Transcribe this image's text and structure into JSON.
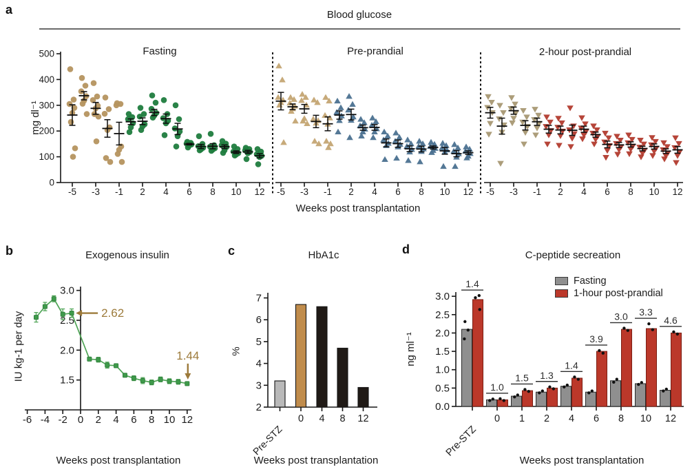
{
  "figure": {
    "panel_a": {
      "letter": "a",
      "header": "Blood glucose",
      "titles": [
        "Fasting",
        "Pre-prandial",
        "2-hour post-prandial"
      ],
      "y_axis_label": "mg dl⁻¹",
      "x_axis_label": "Weeks post transplantation"
    },
    "panel_b": {
      "letter": "b",
      "title": "Exogenous insulin",
      "y_axis_label": "IU kg-1 per day",
      "x_axis_label": "Weeks post transplantation"
    },
    "panel_c": {
      "letter": "c",
      "title": "HbA1c",
      "y_axis_label": "%",
      "x_axis_label": "Weeks post transplantation"
    },
    "panel_d": {
      "letter": "d",
      "title": "C-peptide secreation",
      "y_axis_label": "ng ml⁻¹",
      "x_axis_label": "Weeks post transplantation",
      "legend": [
        {
          "label": "Fasting",
          "color": "#8f8f8f"
        },
        {
          "label": "1-hour post-prandial",
          "color": "#bb382a"
        }
      ]
    }
  },
  "chart_data": [
    {
      "id": "a-fasting",
      "type": "scatter",
      "marker": "circle",
      "title": "Fasting",
      "ylabel": "mg dl⁻¹",
      "ylim": [
        0,
        500
      ],
      "y_ticks": [
        0,
        100,
        200,
        300,
        400,
        500
      ],
      "x_tick_labels": [
        "-5",
        "-3",
        "-1",
        "2",
        "4",
        "6",
        "8",
        "10",
        "12"
      ],
      "pre_color": "#b5945f",
      "post_color": "#1f7c3e",
      "groups": [
        {
          "week": -5,
          "points": [
            440,
            322,
            305,
            290,
            270,
            235,
            133,
            100
          ],
          "mean": 262,
          "sem": 40
        },
        {
          "week": -4,
          "points": [
            406,
            376,
            354,
            335,
            318,
            306,
            266
          ],
          "mean": 337,
          "sem": 16
        },
        {
          "week": -3,
          "points": [
            386,
            334,
            320,
            298,
            288,
            266,
            256,
            160
          ],
          "mean": 288,
          "sem": 23
        },
        {
          "week": -2,
          "points": [
            330,
            285,
            267,
            214,
            204,
            95,
            80
          ],
          "mean": 210,
          "sem": 34
        },
        {
          "week": -1,
          "points": [
            308,
            305,
            300,
            140,
            127,
            111,
            80
          ],
          "mean": 190,
          "sem": 44
        },
        {
          "week": 1,
          "points": [
            266,
            254,
            246,
            230,
            214,
            196
          ],
          "mean": 236,
          "sem": 11
        },
        {
          "week": 2,
          "points": [
            290,
            266,
            256,
            226,
            218,
            204
          ],
          "mean": 238,
          "sem": 13
        },
        {
          "week": 3,
          "points": [
            338,
            310,
            286,
            270,
            260,
            252
          ],
          "mean": 272,
          "sem": 12
        },
        {
          "week": 4,
          "points": [
            320,
            266,
            250,
            240,
            230,
            184
          ],
          "mean": 248,
          "sem": 18
        },
        {
          "week": 5,
          "points": [
            300,
            246,
            210,
            198,
            180,
            140
          ],
          "mean": 208,
          "sem": 22
        },
        {
          "week": 6,
          "points": [
            158,
            154,
            151,
            148,
            144,
            136
          ],
          "mean": 149,
          "sem": 3
        },
        {
          "week": 7,
          "points": [
            180,
            150,
            141,
            135,
            129,
            125
          ],
          "mean": 140,
          "sem": 8
        },
        {
          "week": 8,
          "points": [
            189,
            145,
            139,
            133,
            128,
            123
          ],
          "mean": 141,
          "sem": 10
        },
        {
          "week": 9,
          "points": [
            161,
            151,
            145,
            138,
            125,
            115
          ],
          "mean": 139,
          "sem": 7
        },
        {
          "week": 10,
          "points": [
            140,
            130,
            120,
            114,
            109,
            105
          ],
          "mean": 118,
          "sem": 5
        },
        {
          "week": 11,
          "points": [
            135,
            130,
            125,
            119,
            114,
            91
          ],
          "mean": 119,
          "sem": 6
        },
        {
          "week": 12,
          "points": [
            130,
            120,
            110,
            104,
            99,
            71
          ],
          "mean": 104,
          "sem": 8
        }
      ]
    },
    {
      "id": "a-pre-prandial",
      "type": "scatter",
      "marker": "triangle-up",
      "title": "Pre-prandial",
      "ylabel": "mg dl⁻¹",
      "ylim": [
        0,
        500
      ],
      "y_ticks": [
        0,
        100,
        200,
        300,
        400,
        500
      ],
      "x_tick_labels": [
        "-5",
        "-3",
        "-1",
        "2",
        "4",
        "6",
        "8",
        "10",
        "12"
      ],
      "pre_color": "#c4a573",
      "post_color": "#4b7190",
      "groups": [
        {
          "week": -5,
          "points": [
            452,
            398,
            330,
            320,
            310,
            300,
            155
          ],
          "mean": 316,
          "sem": 34
        },
        {
          "week": -4,
          "points": [
            330,
            322,
            308,
            296,
            286,
            276,
            238
          ],
          "mean": 294,
          "sem": 11
        },
        {
          "week": -3,
          "points": [
            342,
            330,
            318,
            300,
            248,
            238,
            228
          ],
          "mean": 286,
          "sem": 17
        },
        {
          "week": -2,
          "points": [
            320,
            310,
            246,
            240,
            230,
            160,
            150
          ],
          "mean": 237,
          "sem": 24
        },
        {
          "week": -1,
          "points": [
            330,
            316,
            260,
            250,
            226,
            160,
            150,
            135
          ],
          "mean": 228,
          "sem": 27
        },
        {
          "week": 1,
          "points": [
            316,
            290,
            272,
            258,
            240,
            196
          ],
          "mean": 262,
          "sem": 16
        },
        {
          "week": 2,
          "points": [
            334,
            303,
            281,
            254,
            241,
            174
          ],
          "mean": 264,
          "sem": 21
        },
        {
          "week": 3,
          "points": [
            245,
            232,
            220,
            207,
            196,
            180
          ],
          "mean": 213,
          "sem": 10
        },
        {
          "week": 4,
          "points": [
            250,
            236,
            222,
            208,
            196,
            174
          ],
          "mean": 214,
          "sem": 11
        },
        {
          "week": 5,
          "points": [
            196,
            180,
            165,
            152,
            143,
            89
          ],
          "mean": 154,
          "sem": 15
        },
        {
          "week": 6,
          "points": [
            192,
            175,
            160,
            148,
            138,
            94
          ],
          "mean": 151,
          "sem": 14
        },
        {
          "week": 7,
          "points": [
            165,
            150,
            140,
            128,
            118,
            85
          ],
          "mean": 131,
          "sem": 11
        },
        {
          "week": 8,
          "points": [
            160,
            150,
            140,
            130,
            120,
            80
          ],
          "mean": 130,
          "sem": 11
        },
        {
          "week": 9,
          "points": [
            156,
            148,
            140,
            132,
            124,
            116
          ],
          "mean": 136,
          "sem": 6
        },
        {
          "week": 10,
          "points": [
            152,
            143,
            134,
            126,
            118,
            62
          ],
          "mean": 123,
          "sem": 13
        },
        {
          "week": 11,
          "points": [
            147,
            134,
            121,
            111,
            98,
            62
          ],
          "mean": 112,
          "sem": 12
        },
        {
          "week": 12,
          "points": [
            138,
            129,
            121,
            112,
            102,
            95
          ],
          "mean": 116,
          "sem": 7
        }
      ]
    },
    {
      "id": "a-2h-post-prandial",
      "type": "scatter",
      "marker": "triangle-down",
      "title": "2-hour post-prandial",
      "ylabel": "mg dl⁻¹",
      "ylim": [
        0,
        500
      ],
      "y_ticks": [
        0,
        100,
        200,
        300,
        400,
        500
      ],
      "x_tick_labels": [
        "-5",
        "-3",
        "-1",
        "2",
        "4",
        "6",
        "8",
        "10",
        "12"
      ],
      "pre_color": "#a89873",
      "post_color": "#b23b2e",
      "groups": [
        {
          "week": -5,
          "points": [
            334,
            312,
            292,
            272,
            230,
            188
          ],
          "mean": 271,
          "sem": 21
        },
        {
          "week": -4,
          "points": [
            300,
            272,
            248,
            224,
            196,
            75
          ],
          "mean": 219,
          "sem": 31
        },
        {
          "week": -3,
          "points": [
            330,
            305,
            288,
            270,
            250,
            232
          ],
          "mean": 279,
          "sem": 14
        },
        {
          "week": -2,
          "points": [
            280,
            255,
            235,
            218,
            195,
            150
          ],
          "mean": 222,
          "sem": 18
        },
        {
          "week": -1,
          "points": [
            285,
            262,
            245,
            230,
            212,
            185
          ],
          "mean": 236,
          "sem": 14
        },
        {
          "week": 1,
          "points": [
            255,
            235,
            218,
            202,
            185,
            150
          ],
          "mean": 207,
          "sem": 15
        },
        {
          "week": 2,
          "points": [
            250,
            232,
            215,
            200,
            182,
            145
          ],
          "mean": 204,
          "sem": 15
        },
        {
          "week": 3,
          "points": [
            290,
            220,
            205,
            190,
            172,
            140
          ],
          "mean": 203,
          "sem": 20
        },
        {
          "week": 4,
          "points": [
            252,
            228,
            212,
            198,
            185,
            170
          ],
          "mean": 207,
          "sem": 12
        },
        {
          "week": 5,
          "points": [
            220,
            205,
            192,
            180,
            168,
            150
          ],
          "mean": 186,
          "sem": 10
        },
        {
          "week": 6,
          "points": [
            192,
            174,
            158,
            144,
            125,
            98
          ],
          "mean": 148,
          "sem": 13
        },
        {
          "week": 7,
          "points": [
            180,
            165,
            152,
            140,
            128,
            110
          ],
          "mean": 146,
          "sem": 10
        },
        {
          "week": 8,
          "points": [
            185,
            168,
            155,
            142,
            130,
            112
          ],
          "mean": 148,
          "sem": 10
        },
        {
          "week": 9,
          "points": [
            165,
            150,
            138,
            126,
            115,
            100
          ],
          "mean": 132,
          "sem": 9
        },
        {
          "week": 10,
          "points": [
            175,
            160,
            147,
            134,
            122,
            105
          ],
          "mean": 140,
          "sem": 10
        },
        {
          "week": 11,
          "points": [
            155,
            140,
            128,
            116,
            105,
            92
          ],
          "mean": 122,
          "sem": 9
        },
        {
          "week": 12,
          "points": [
            174,
            152,
            136,
            120,
            105,
            78
          ],
          "mean": 127,
          "sem": 13
        }
      ]
    },
    {
      "id": "b-insulin",
      "type": "line",
      "title": "Exogenous insulin",
      "ylabel": "IU kg-1 per day",
      "ylim": [
        1.0,
        3.0
      ],
      "y_tick_labels": [
        "1.5",
        "2.0",
        "2.5",
        "3.0"
      ],
      "x_ticks": [
        -6,
        -4,
        -2,
        0,
        2,
        4,
        6,
        8,
        10,
        12
      ],
      "color": "#4ea455",
      "annotation_color": "#9c7a3a",
      "points": [
        {
          "week": -5,
          "value": 2.55,
          "sem": 0.08
        },
        {
          "week": -4,
          "value": 2.73,
          "sem": 0.07
        },
        {
          "week": -3,
          "value": 2.86,
          "sem": 0.05
        },
        {
          "week": -2,
          "value": 2.6,
          "sem": 0.09
        },
        {
          "week": -1,
          "value": 2.62,
          "sem": 0.07
        },
        {
          "week": 1,
          "value": 1.85,
          "sem": 0.03
        },
        {
          "week": 2,
          "value": 1.84,
          "sem": 0.04
        },
        {
          "week": 3,
          "value": 1.75,
          "sem": 0.05
        },
        {
          "week": 4,
          "value": 1.74,
          "sem": 0.03
        },
        {
          "week": 5,
          "value": 1.58,
          "sem": 0.03
        },
        {
          "week": 6,
          "value": 1.53,
          "sem": 0.04
        },
        {
          "week": 7,
          "value": 1.49,
          "sem": 0.05
        },
        {
          "week": 8,
          "value": 1.46,
          "sem": 0.04
        },
        {
          "week": 9,
          "value": 1.51,
          "sem": 0.04
        },
        {
          "week": 10,
          "value": 1.48,
          "sem": 0.04
        },
        {
          "week": 11,
          "value": 1.47,
          "sem": 0.04
        },
        {
          "week": 12,
          "value": 1.44,
          "sem": 0.03
        }
      ],
      "annotations": [
        {
          "label": "2.62",
          "week": -1,
          "value": 2.62,
          "dir": "left"
        },
        {
          "label": "1.44",
          "week": 12,
          "value": 1.44,
          "dir": "down"
        }
      ]
    },
    {
      "id": "c-hba1c",
      "type": "bar",
      "title": "HbA1c",
      "ylabel": "%",
      "ylim": [
        2,
        7
      ],
      "y_ticks": [
        2,
        3,
        4,
        5,
        6,
        7
      ],
      "categories": [
        "Pre-STZ",
        "0",
        "4",
        "8",
        "12"
      ],
      "values": [
        3.2,
        6.7,
        6.6,
        4.7,
        2.9
      ],
      "bar_colors": [
        "#b9b9b9",
        "#c08c4c",
        "#201a16",
        "#201a16",
        "#201a16"
      ]
    },
    {
      "id": "d-c-peptide",
      "type": "grouped-bar",
      "title": "C-peptide secreation",
      "ylabel": "ng ml⁻¹",
      "ylim": [
        0,
        3
      ],
      "y_tick_labels": [
        "0.0",
        "0.5",
        "1.0",
        "1.5",
        "2.0",
        "2.5",
        "3.0"
      ],
      "categories": [
        "Pre-STZ",
        "0",
        "1",
        "2",
        "4",
        "6",
        "8",
        "10",
        "12"
      ],
      "series": [
        {
          "name": "Fasting",
          "color": "#8f8f8f",
          "edge": "#2b2b2b",
          "values": [
            2.1,
            0.18,
            0.28,
            0.39,
            0.55,
            0.39,
            0.7,
            0.62,
            0.44
          ],
          "dots": [
            [
              2.31,
              2.08,
              1.84
            ],
            [
              0.16,
              0.2
            ],
            [
              0.26,
              0.31
            ],
            [
              0.37,
              0.42
            ],
            [
              0.53,
              0.58
            ],
            [
              0.37,
              0.42
            ],
            [
              0.66,
              0.74
            ],
            [
              0.6,
              0.65
            ],
            [
              0.42,
              0.47
            ]
          ]
        },
        {
          "name": "1-hour post-prandial",
          "color": "#bb382a",
          "edge": "#7a1d12",
          "values": [
            2.91,
            0.18,
            0.43,
            0.5,
            0.77,
            1.5,
            2.1,
            2.12,
            2.0
          ],
          "dots": [
            [
              3.02,
              2.96,
              2.64
            ],
            [
              0.16,
              0.21
            ],
            [
              0.41,
              0.46
            ],
            [
              0.48,
              0.53
            ],
            [
              0.74,
              0.8
            ],
            [
              1.45,
              1.52
            ],
            [
              2.07,
              2.13
            ],
            [
              2.09,
              2.25
            ],
            [
              1.97,
              2.03
            ]
          ]
        }
      ],
      "ratio_labels": [
        "1.4",
        "1.0",
        "1.5",
        "1.3",
        "1.4",
        "3.9",
        "3.0",
        "3.3",
        "4.6"
      ]
    }
  ]
}
